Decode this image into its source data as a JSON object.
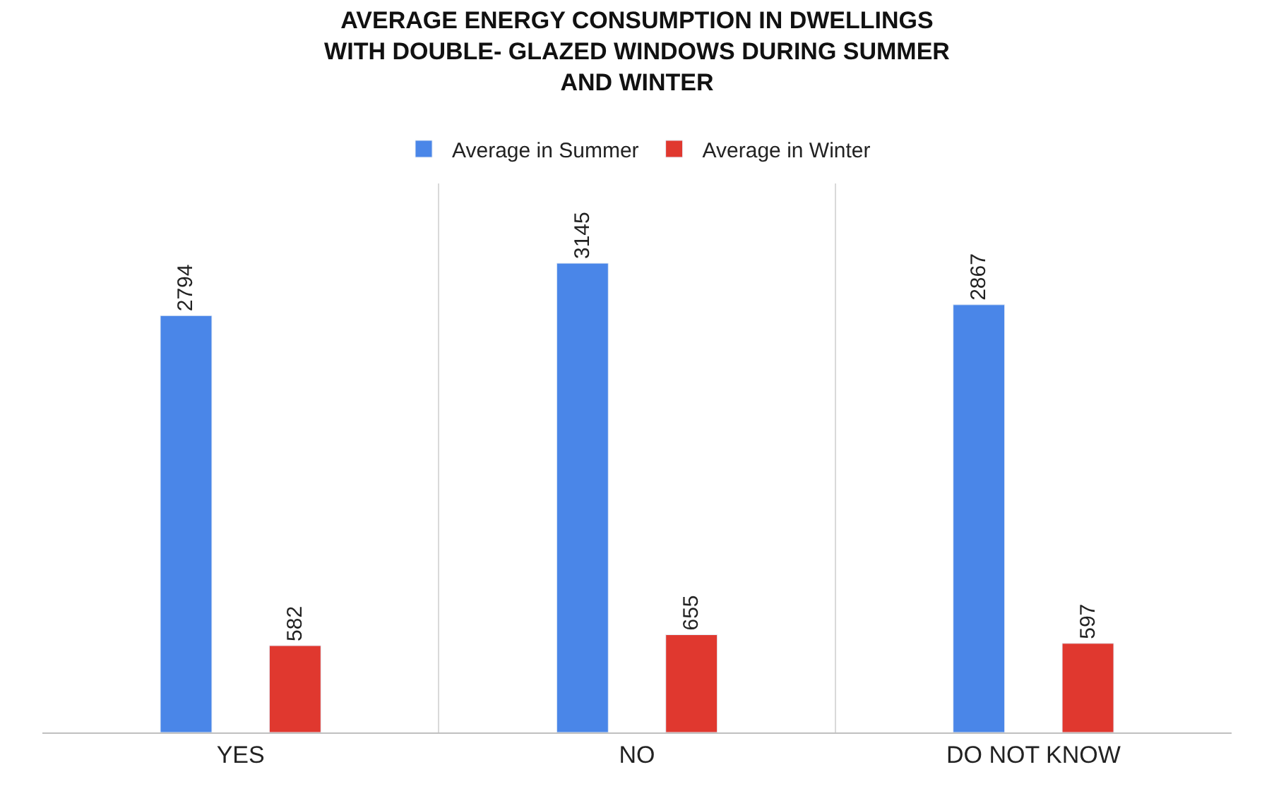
{
  "chart_data": {
    "type": "bar",
    "title": "AVERAGE ENERGY CONSUMPTION IN DWELLINGS\nWITH DOUBLE- GLAZED WINDOWS DURING SUMMER\nAND WINTER",
    "categories": [
      "YES",
      "NO",
      "DO NOT KNOW"
    ],
    "series": [
      {
        "name": "Average in Summer",
        "color": "#4a86e8",
        "values": [
          2794,
          3145,
          2867
        ]
      },
      {
        "name": "Average in Winter",
        "color": "#e0382f",
        "values": [
          582,
          655,
          597
        ]
      }
    ],
    "data_labels": true,
    "legend": "top",
    "grid": "x",
    "tick_labels": "x"
  }
}
